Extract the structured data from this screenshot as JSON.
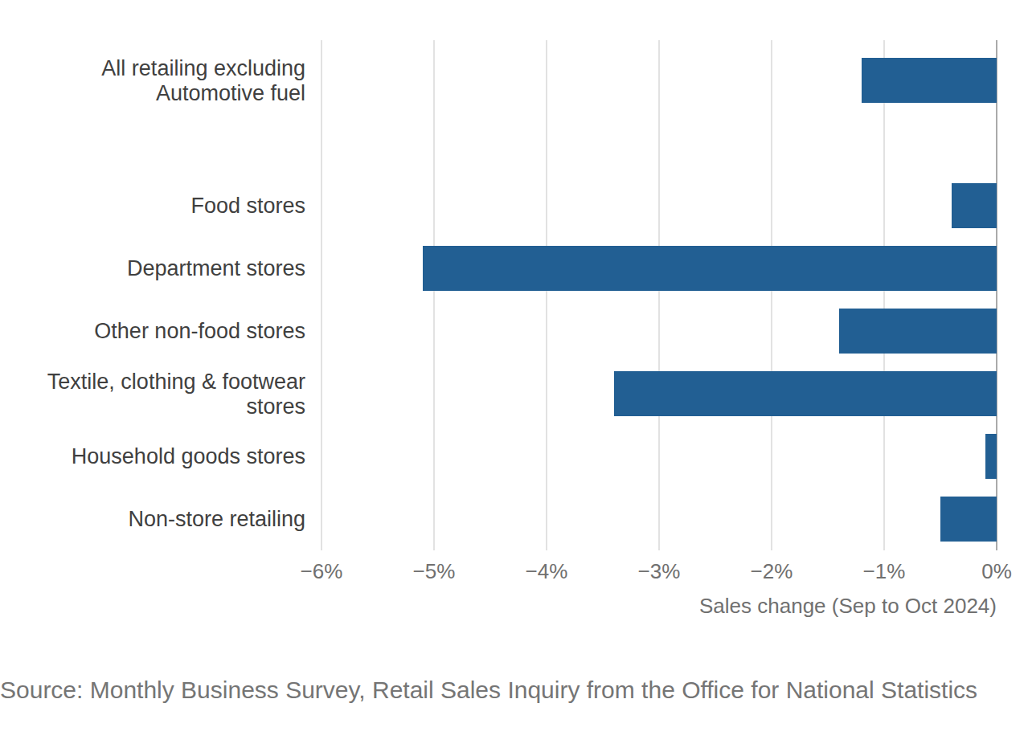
{
  "chart_data": {
    "type": "bar",
    "orientation": "horizontal",
    "categories": [
      "All retailing excluding Automotive fuel",
      "Food stores",
      "Department stores",
      "Other non-food stores",
      "Textile, clothing & footwear stores",
      "Household goods stores",
      "Non-store retailing"
    ],
    "values": [
      -1.2,
      -0.4,
      -5.1,
      -1.4,
      -3.4,
      -0.1,
      -0.5
    ],
    "color": "#225f93",
    "xlim": [
      -6,
      0
    ],
    "xticks": [
      {
        "value": -6,
        "label": "−6%"
      },
      {
        "value": -5,
        "label": "−5%"
      },
      {
        "value": -4,
        "label": "−4%"
      },
      {
        "value": -3,
        "label": "−3%"
      },
      {
        "value": -2,
        "label": "−2%"
      },
      {
        "value": -1,
        "label": "−1%"
      },
      {
        "value": 0,
        "label": "0%"
      }
    ],
    "x_label": "Sales change (Sep to Oct 2024)",
    "grid": true,
    "source": "Source: Monthly Business Survey, Retail Sales Inquiry from the Office for National Statistics"
  }
}
